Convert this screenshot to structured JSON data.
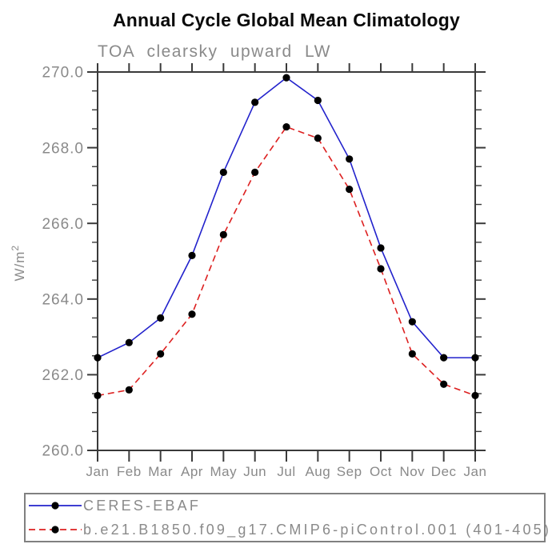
{
  "chart_data": {
    "type": "line",
    "title": "Annual Cycle Global Mean Climatology",
    "subtitle": "TOA clearsky upward LW",
    "ylabel_base": "W/m",
    "ylabel_sup": "2",
    "categories": [
      "Jan",
      "Feb",
      "Mar",
      "Apr",
      "May",
      "Jun",
      "Jul",
      "Aug",
      "Sep",
      "Oct",
      "Nov",
      "Dec",
      "Jan"
    ],
    "ylim": [
      260.0,
      270.0
    ],
    "y_major_step": 2.0,
    "y_minor_step": 0.5,
    "y_tick_labels": [
      "260.0",
      "262.0",
      "264.0",
      "266.0",
      "268.0",
      "270.0"
    ],
    "grid": false,
    "legend_position": "bottom-left",
    "series": [
      {
        "name": "CERES-EBAF",
        "color": "#2222cc",
        "style": "solid",
        "marker": "circle",
        "marker_color": "#000000",
        "values": [
          262.45,
          262.85,
          263.5,
          265.15,
          267.35,
          269.2,
          269.85,
          269.25,
          267.7,
          265.35,
          263.4,
          262.45,
          262.45
        ]
      },
      {
        "name": "b.e21.B1850.f09_g17.CMIP6-piControl.001 (401-405)",
        "color": "#dd2020",
        "style": "dashed",
        "marker": "circle",
        "marker_color": "#000000",
        "values": [
          261.45,
          261.6,
          262.55,
          263.6,
          265.7,
          267.35,
          268.55,
          268.25,
          266.9,
          264.8,
          262.55,
          261.75,
          261.45
        ]
      }
    ],
    "colors": {
      "axis": "#3a3a3a",
      "tick": "#3a3a3a",
      "axis_text": "#8a8a8a",
      "title_text": "#0a0a0a",
      "background": "#ffffff"
    }
  }
}
